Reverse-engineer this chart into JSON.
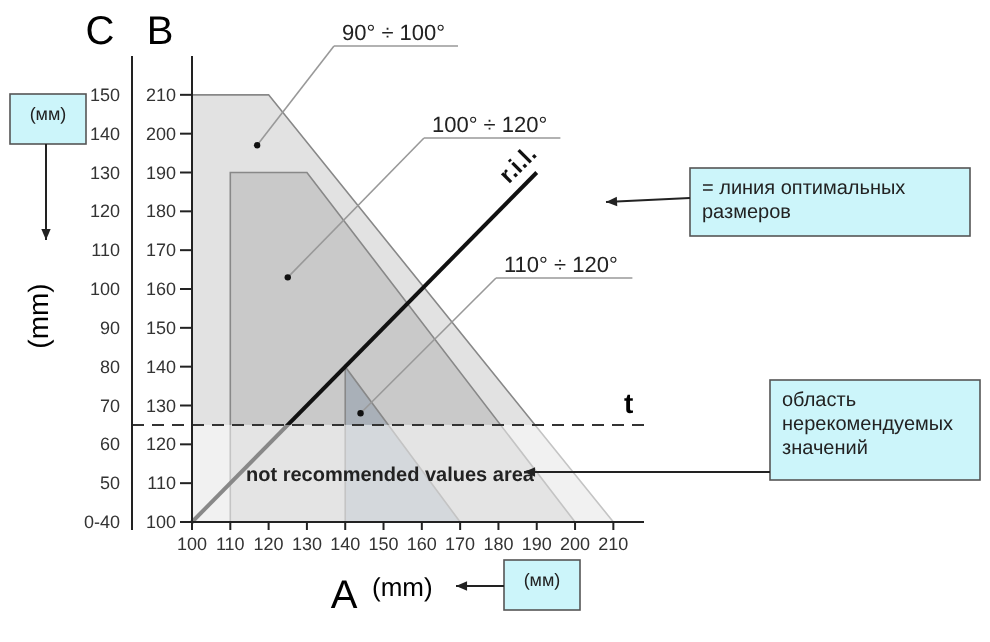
{
  "chart_data": {
    "type": "area",
    "xlabel": "A",
    "ylabel": "B",
    "y2label": "C",
    "xlim": [
      100,
      218
    ],
    "xticks": [
      100,
      110,
      120,
      130,
      140,
      150,
      160,
      170,
      180,
      190,
      200,
      210
    ],
    "ylim": [
      100,
      220
    ],
    "yticks": [
      100,
      110,
      120,
      130,
      140,
      150,
      160,
      170,
      180,
      190,
      200,
      210
    ],
    "y2lim": [
      40,
      160
    ],
    "y2ticks": [
      {
        "value": 40,
        "label": "0-40"
      },
      50,
      60,
      70,
      80,
      90,
      100,
      110,
      120,
      130,
      140,
      150
    ],
    "series": [
      {
        "color": "#e2e2e2",
        "x": [
          100,
          120,
          210
        ],
        "values": [
          210,
          210,
          100
        ]
      },
      {
        "color": "#c9c9c9",
        "x": [
          110,
          130,
          200
        ],
        "values": [
          190,
          190,
          100
        ]
      },
      {
        "color": "#a9b0b8",
        "x": [
          140,
          170
        ],
        "values": [
          140,
          100
        ]
      },
      {
        "type": "line",
        "name": "r.i.l.",
        "color": "#111111",
        "x": [
          100,
          190
        ],
        "values": [
          100,
          190
        ]
      }
    ],
    "ref_lines": [
      {
        "axis": "y",
        "value": 125,
        "label": "t",
        "line_style": "dashed",
        "color": "#333333"
      }
    ],
    "bands": [
      {
        "axis": "y",
        "from": 100,
        "to": 125,
        "label": "not recommended values area",
        "color": "#ffffff"
      }
    ],
    "annotations": [
      {
        "text": "90° ÷ 100°",
        "x": 117,
        "y": 197
      },
      {
        "text": "100° ÷ 120°",
        "x": 125,
        "y": 163
      },
      {
        "text": "110° ÷ 120°",
        "x": 144,
        "y": 128
      },
      "= линия оптимальных размеров",
      "область нерекомендуемых значений",
      "(мм)",
      "(мм)",
      "(mm)",
      "(mm)"
    ],
    "tick_labels": "xy"
  }
}
